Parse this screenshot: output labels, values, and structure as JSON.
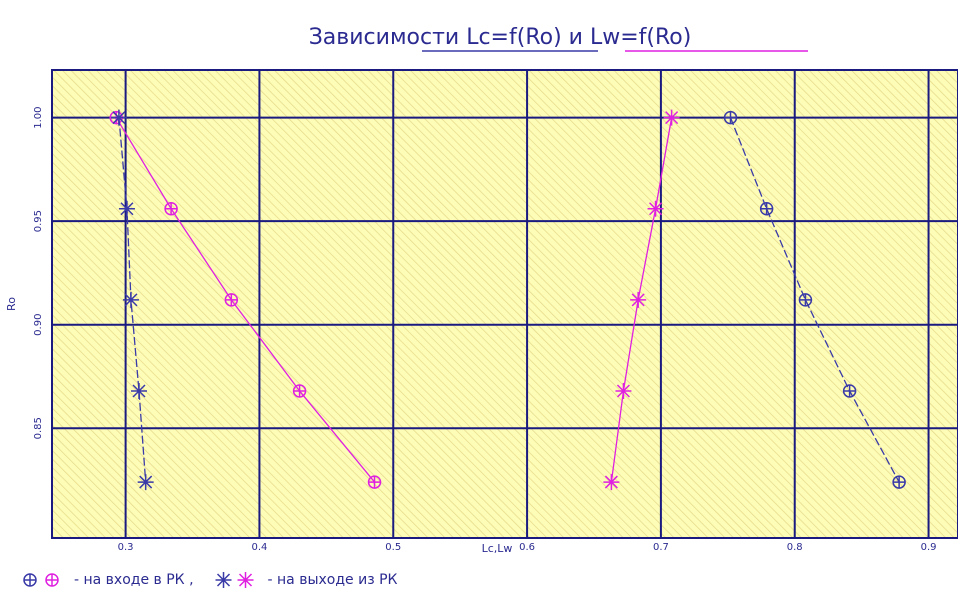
{
  "chart_data": {
    "type": "scatter",
    "title": "Зависимости Lc=f(Ro) и Lw=f(Ro)",
    "xlabel": "Lc,Lw",
    "ylabel": "Ro",
    "xlim": [
      0.245,
      0.922
    ],
    "ylim": [
      0.797,
      1.023
    ],
    "xticks": [
      0.3,
      0.4,
      0.5,
      0.6,
      0.7,
      0.8,
      0.9
    ],
    "yticks": [
      {
        "value": 0.85,
        "label": "0.85"
      },
      {
        "value": 0.9,
        "label": "0.90"
      },
      0.95,
      {
        "value": 1,
        "label": "1.00"
      }
    ],
    "grid": true,
    "series": [
      {
        "color": "#3a3aa8",
        "marker": "circle",
        "dashed": true,
        "x": [
          0.752,
          0.779,
          0.808,
          0.841,
          0.878
        ],
        "values": [
          1.0,
          0.956,
          0.912,
          0.868,
          0.824
        ]
      },
      {
        "color": "#e020e0",
        "marker": "circle",
        "dashed": false,
        "x": [
          0.293,
          0.334,
          0.379,
          0.43,
          0.486
        ],
        "values": [
          1.0,
          0.956,
          0.912,
          0.868,
          0.824
        ]
      },
      {
        "color": "#3a3aa8",
        "marker": "star",
        "dashed": true,
        "x": [
          0.295,
          0.301,
          0.304,
          0.31,
          0.315
        ],
        "values": [
          1.0,
          0.956,
          0.912,
          0.868,
          0.824
        ]
      },
      {
        "color": "#e020e0",
        "marker": "star",
        "dashed": false,
        "x": [
          0.708,
          0.696,
          0.683,
          0.672,
          0.663
        ],
        "values": [
          1.0,
          0.956,
          0.912,
          0.868,
          0.824
        ]
      }
    ],
    "legend": [
      {
        "label": "- на входе в РК ,",
        "series": [
          0,
          1
        ]
      },
      {
        "label": "- на выходе из РК",
        "series": [
          2,
          3
        ]
      }
    ]
  }
}
